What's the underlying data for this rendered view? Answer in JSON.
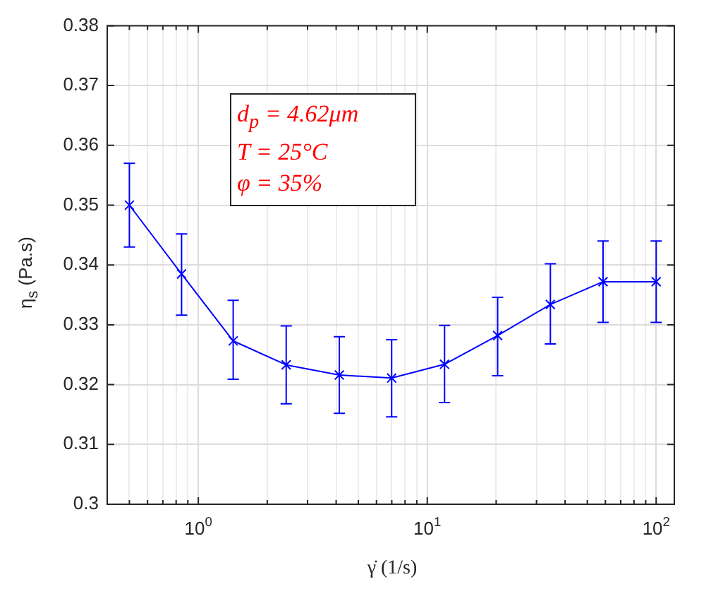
{
  "chart_data": {
    "type": "line",
    "xlabel": "γ̇ (1/s)",
    "ylabel": "η$_{s}$ (Pa.s)",
    "log": "x",
    "grid": true,
    "legend": false,
    "marker": "cross",
    "line_style": "solid",
    "xlim": [
      0.4,
      120
    ],
    "xticks": [
      {
        "value": 0.4,
        "label": null
      },
      {
        "value": 0.5,
        "label": null
      },
      {
        "value": 0.6,
        "label": null
      },
      {
        "value": 0.7,
        "label": null
      },
      {
        "value": 0.8,
        "label": null
      },
      {
        "value": 0.9,
        "label": null
      },
      {
        "value": 1,
        "label": "10$^{0}$"
      },
      {
        "value": 2,
        "label": null
      },
      {
        "value": 3,
        "label": null
      },
      {
        "value": 4,
        "label": null
      },
      {
        "value": 5,
        "label": null
      },
      {
        "value": 6,
        "label": null
      },
      {
        "value": 7,
        "label": null
      },
      {
        "value": 8,
        "label": null
      },
      {
        "value": 9,
        "label": null
      },
      {
        "value": 10,
        "label": "10$^{1}$"
      },
      {
        "value": 20,
        "label": null
      },
      {
        "value": 30,
        "label": null
      },
      {
        "value": 40,
        "label": null
      },
      {
        "value": 50,
        "label": null
      },
      {
        "value": 60,
        "label": null
      },
      {
        "value": 70,
        "label": null
      },
      {
        "value": 80,
        "label": null
      },
      {
        "value": 90,
        "label": null
      },
      {
        "value": 100,
        "label": "10$^{2}$"
      }
    ],
    "ylim": [
      0.3,
      0.38
    ],
    "yticks": [
      0.3,
      0.31,
      0.32,
      0.33,
      0.34,
      0.35,
      0.36,
      0.37,
      0.38
    ],
    "x": [
      0.5,
      0.845,
      1.42,
      2.42,
      4.13,
      6.99,
      11.9,
      20.3,
      34.5,
      58.6,
      100
    ],
    "series": [
      {
        "color": "#0000ff",
        "values": [
          0.35,
          0.3385,
          0.3273,
          0.3233,
          0.3216,
          0.3211,
          0.3234,
          0.3282,
          0.3334,
          0.3372,
          0.3372
        ],
        "errors": [
          [
            0.343,
            0.357
          ],
          [
            0.3316,
            0.3452
          ],
          [
            0.3209,
            0.3341
          ],
          [
            0.3168,
            0.3298
          ],
          [
            0.3152,
            0.328
          ],
          [
            0.3146,
            0.3275
          ],
          [
            0.317,
            0.3299
          ],
          [
            0.3215,
            0.3346
          ],
          [
            0.3268,
            0.3402
          ],
          [
            0.3304,
            0.344
          ],
          [
            0.3304,
            0.344
          ]
        ]
      }
    ],
    "annotations": [
      "d$_{p}$ = 4.62μm",
      "T = 25°C",
      "φ = 35%"
    ]
  }
}
